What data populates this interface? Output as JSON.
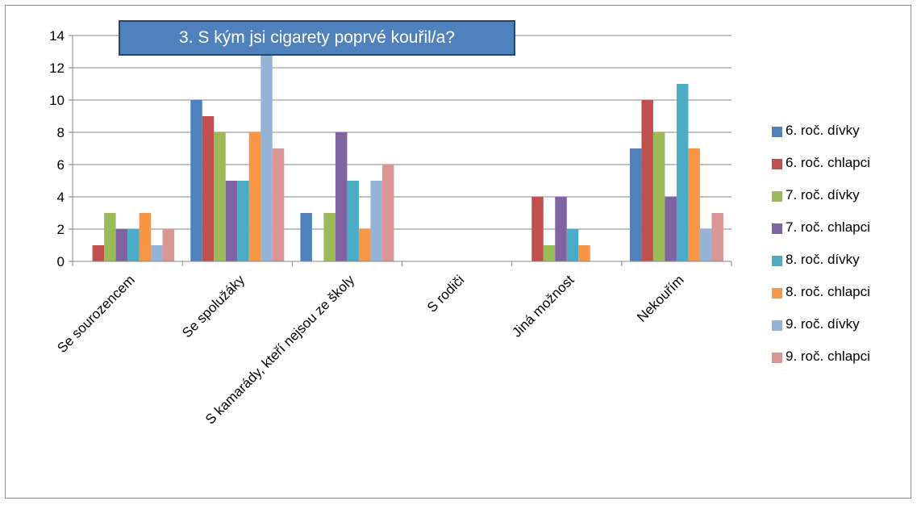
{
  "chart_data": {
    "type": "bar",
    "title": "3. S kým jsi cigarety poprvé kouřil/a?",
    "xlabel": "",
    "ylabel": "",
    "ylim": [
      0,
      14
    ],
    "yticks": [
      0,
      2,
      4,
      6,
      8,
      10,
      12,
      14
    ],
    "grid": true,
    "legend_position": "right",
    "categories": [
      "Se sourozencem",
      "Se spolužáky",
      "S kamarády, kteří nejsou ze školy",
      "S rodiči",
      "Jiná možnost",
      "Nekouřím"
    ],
    "series": [
      {
        "name": "6. roč. dívky",
        "color": "#4f81bd",
        "values": [
          0,
          10,
          3,
          0,
          0,
          7
        ]
      },
      {
        "name": "6. roč. chlapci",
        "color": "#c0504d",
        "values": [
          1,
          9,
          0,
          0,
          4,
          10
        ]
      },
      {
        "name": "7. roč. dívky",
        "color": "#9bbb59",
        "values": [
          3,
          8,
          3,
          0,
          1,
          8
        ]
      },
      {
        "name": "7. roč. chlapci",
        "color": "#8064a2",
        "values": [
          2,
          5,
          8,
          0,
          4,
          4
        ]
      },
      {
        "name": "8. roč. dívky",
        "color": "#4bacc6",
        "values": [
          2,
          5,
          5,
          0,
          2,
          11
        ]
      },
      {
        "name": "8. roč. chlapci",
        "color": "#f79646",
        "values": [
          3,
          8,
          2,
          0,
          1,
          7
        ]
      },
      {
        "name": "9. roč. dívky",
        "color": "#95b3d7",
        "values": [
          1,
          13,
          5,
          0,
          0,
          2
        ]
      },
      {
        "name": "9. roč. chlapci",
        "color": "#d99694",
        "values": [
          2,
          7,
          6,
          0,
          0,
          3
        ]
      }
    ]
  }
}
